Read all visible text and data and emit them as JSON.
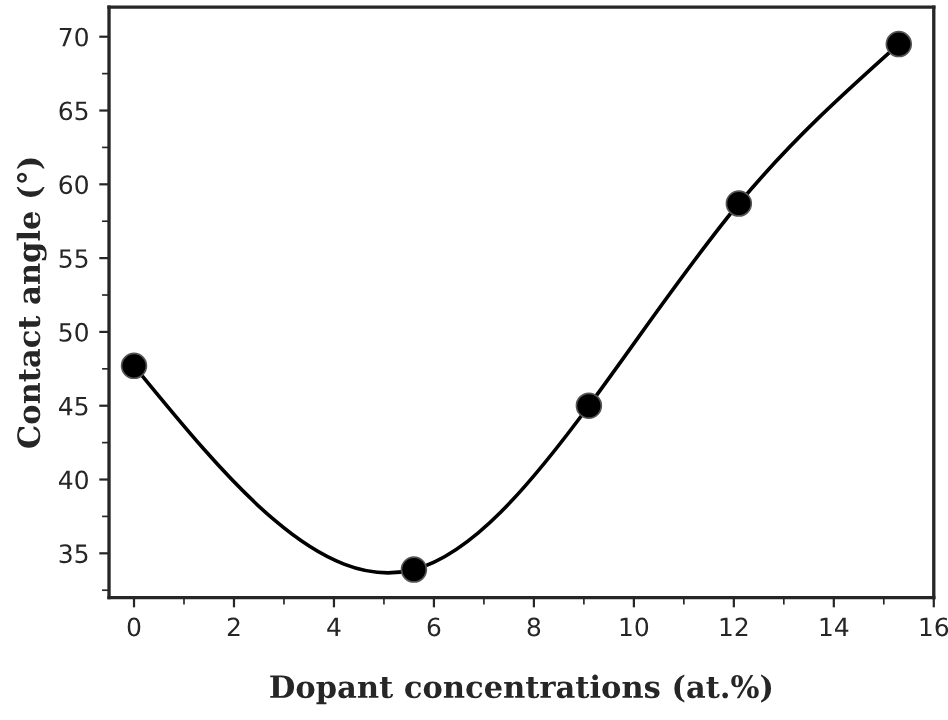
{
  "chart_data": {
    "type": "line",
    "xlabel": "Dopant concentrations (at.%)",
    "ylabel": "Contact angle (°)",
    "x": [
      0,
      5.6,
      9.1,
      12.1,
      15.3
    ],
    "series": [
      {
        "color": "#000000",
        "values": [
          47.7,
          33.9,
          45.0,
          58.7,
          69.5
        ]
      }
    ],
    "xlim": [
      -0.5,
      16
    ],
    "xticks": [
      0,
      2,
      4,
      6,
      8,
      10,
      12,
      14,
      16
    ],
    "ylim": [
      32,
      72
    ],
    "yticks": [
      35,
      40,
      45,
      50,
      55,
      60,
      65,
      70
    ],
    "marker": "circle",
    "line_style": "solid",
    "grid": false,
    "legend": false
  }
}
